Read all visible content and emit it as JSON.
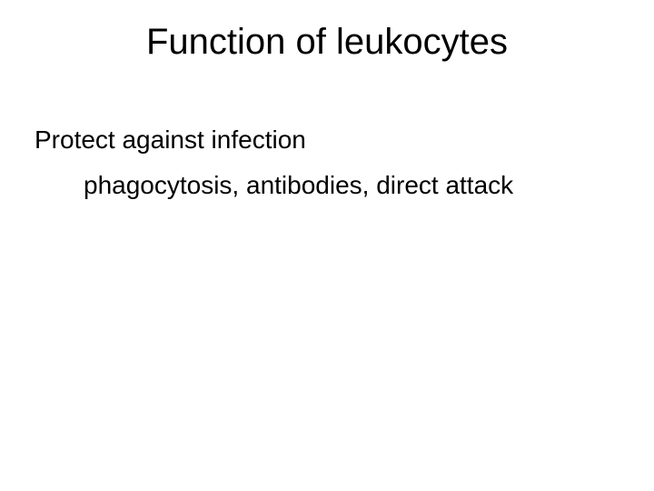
{
  "slide": {
    "title": "Function of leukocytes",
    "line1": "Protect against infection",
    "line2": "phagocytosis, antibodies, direct attack",
    "background_color": "#ffffff",
    "text_color": "#000000",
    "title_fontsize": 40,
    "body_fontsize": 28,
    "font_family": "Arial"
  }
}
